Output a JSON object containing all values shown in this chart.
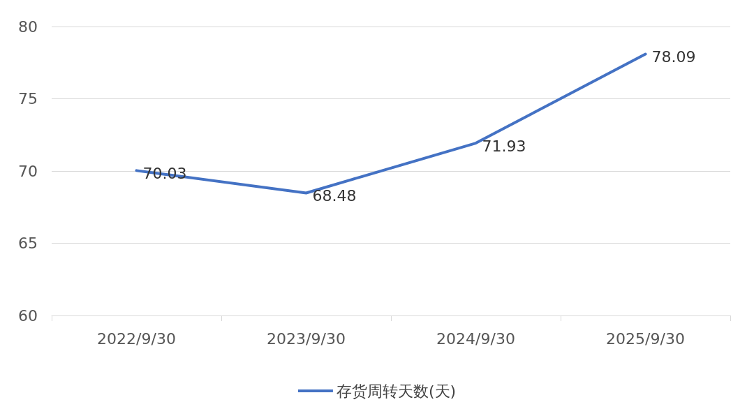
{
  "chart_data": {
    "type": "line",
    "categories": [
      "2022/9/30",
      "2023/9/30",
      "2024/9/30",
      "2025/9/30"
    ],
    "series": [
      {
        "name": "存货周转天数(天)",
        "color": "#4472c4",
        "values": [
          70.03,
          68.48,
          71.93,
          78.09
        ]
      }
    ],
    "ylim": [
      60,
      80
    ],
    "yticks": [
      60,
      65,
      70,
      75,
      80
    ],
    "grid": "y",
    "legend": "bottom",
    "data_labels": true,
    "marker": "none",
    "line_style": "solid"
  }
}
